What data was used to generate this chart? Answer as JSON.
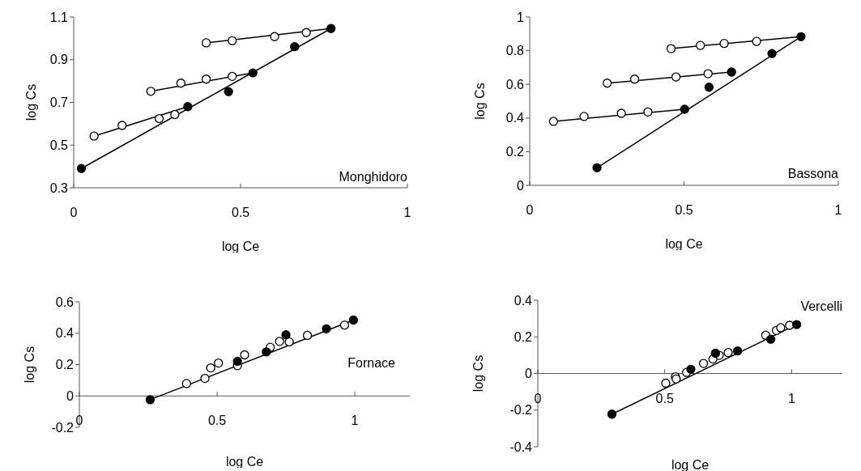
{
  "chart_data": [
    {
      "type": "scatter",
      "xlabel": "log Ce",
      "ylabel": "log Cs",
      "xlim": [
        0,
        1
      ],
      "xticks": [
        0,
        0.5,
        1
      ],
      "ylim": [
        0.3,
        1.1
      ],
      "yticks": [
        0.3,
        0.5,
        0.7,
        0.9,
        1.1
      ],
      "marker": "circle",
      "annotations": [
        "Monghidoro"
      ],
      "series": [
        {
          "type": "line",
          "color": "#000000",
          "marker": "none",
          "x": [
            0.023,
            0.771
          ],
          "values": [
            0.39,
            1.046
          ]
        },
        {
          "type": "line",
          "color": "#000000",
          "marker": "none",
          "x": [
            0.061,
            0.342
          ],
          "values": [
            0.542,
            0.68
          ]
        },
        {
          "type": "line",
          "color": "#000000",
          "marker": "none",
          "x": [
            0.231,
            0.537
          ],
          "values": [
            0.752,
            0.838
          ]
        },
        {
          "type": "line",
          "color": "#000000",
          "marker": "none",
          "x": [
            0.397,
            0.771
          ],
          "values": [
            0.979,
            1.046
          ]
        },
        {
          "color": "#ffffff",
          "x": [
            0.061,
            0.145,
            0.256,
            0.303,
            0.231,
            0.321,
            0.397,
            0.475,
            0.397,
            0.475,
            0.602,
            0.697
          ],
          "values": [
            0.542,
            0.592,
            0.624,
            0.643,
            0.752,
            0.79,
            0.809,
            0.822,
            0.979,
            0.989,
            1.008,
            1.027
          ]
        },
        {
          "color": "#000000",
          "x": [
            0.023,
            0.342,
            0.464,
            0.537,
            0.662,
            0.771
          ],
          "values": [
            0.39,
            0.68,
            0.75,
            0.838,
            0.961,
            1.046
          ]
        }
      ]
    },
    {
      "type": "scatter",
      "xlabel": "log Ce",
      "ylabel": "log Cs",
      "xlim": [
        0,
        1
      ],
      "xticks": [
        0,
        0.5,
        1
      ],
      "ylim": [
        0,
        1
      ],
      "yticks": [
        0,
        0.2,
        0.4,
        0.6,
        0.8,
        1
      ],
      "marker": "circle",
      "annotations": [
        "Bassona"
      ],
      "series": [
        {
          "type": "line",
          "color": "#000000",
          "marker": "none",
          "x": [
            0.218,
            0.879
          ],
          "values": [
            0.104,
            0.883
          ]
        },
        {
          "type": "line",
          "color": "#000000",
          "marker": "none",
          "x": [
            0.077,
            0.502
          ],
          "values": [
            0.38,
            0.452
          ]
        },
        {
          "type": "line",
          "color": "#000000",
          "marker": "none",
          "x": [
            0.251,
            0.654
          ],
          "values": [
            0.607,
            0.673
          ]
        },
        {
          "type": "line",
          "color": "#000000",
          "marker": "none",
          "x": [
            0.458,
            0.879
          ],
          "values": [
            0.812,
            0.883
          ]
        },
        {
          "color": "#ffffff",
          "x": [
            0.077,
            0.176,
            0.297,
            0.383,
            0.251,
            0.34,
            0.474,
            0.578,
            0.458,
            0.553,
            0.63,
            0.735
          ],
          "values": [
            0.38,
            0.409,
            0.428,
            0.436,
            0.607,
            0.631,
            0.644,
            0.663,
            0.812,
            0.831,
            0.843,
            0.855
          ]
        },
        {
          "color": "#000000",
          "x": [
            0.218,
            0.502,
            0.581,
            0.654,
            0.785,
            0.879
          ],
          "values": [
            0.104,
            0.452,
            0.583,
            0.673,
            0.783,
            0.883
          ]
        }
      ]
    },
    {
      "type": "scatter",
      "xlabel": "log Ce",
      "ylabel": "log Cs",
      "xlim": [
        0,
        1.2
      ],
      "xticks": [
        0,
        0.5,
        1
      ],
      "ylim": [
        -0.2,
        0.6
      ],
      "yticks": [
        -0.2,
        0,
        0.2,
        0.4,
        0.6
      ],
      "marker": "circle",
      "annotations": [
        "Fornace"
      ],
      "series": [
        {
          "type": "line",
          "color": "#000000",
          "marker": "none",
          "x": [
            0.257,
            0.995
          ],
          "values": [
            -0.024,
            0.484
          ]
        },
        {
          "color": "#ffffff",
          "x": [
            0.389,
            0.456,
            0.477,
            0.505,
            0.574,
            0.6,
            0.693,
            0.727,
            0.762,
            0.828,
            0.963
          ],
          "values": [
            0.079,
            0.112,
            0.179,
            0.21,
            0.193,
            0.262,
            0.31,
            0.348,
            0.345,
            0.386,
            0.452
          ]
        },
        {
          "color": "#000000",
          "x": [
            0.257,
            0.574,
            0.679,
            0.75,
            0.897,
            0.995
          ],
          "values": [
            -0.024,
            0.221,
            0.281,
            0.39,
            0.428,
            0.484
          ]
        }
      ]
    },
    {
      "type": "scatter",
      "xlabel": "log Ce",
      "ylabel": "log Cs",
      "xlim": [
        0,
        1.2
      ],
      "xticks": [
        0,
        0.5,
        1
      ],
      "ylim": [
        -0.4,
        0.4
      ],
      "yticks": [
        -0.4,
        -0.2,
        0,
        0.2,
        0.4
      ],
      "marker": "circle",
      "annotations": [
        "Vercelli"
      ],
      "series": [
        {
          "type": "line",
          "color": "#000000",
          "marker": "none",
          "x": [
            0.292,
            1.02
          ],
          "values": [
            -0.222,
            0.267
          ]
        },
        {
          "color": "#ffffff",
          "x": [
            0.504,
            0.542,
            0.545,
            0.586,
            0.653,
            0.69,
            0.715,
            0.75,
            0.898,
            0.94,
            0.957,
            0.992
          ],
          "values": [
            -0.053,
            -0.018,
            -0.03,
            0.006,
            0.055,
            0.079,
            0.099,
            0.114,
            0.209,
            0.235,
            0.25,
            0.263
          ]
        },
        {
          "color": "#000000",
          "x": [
            0.292,
            0.603,
            0.7,
            0.787,
            0.918,
            1.02
          ],
          "values": [
            -0.222,
            0.023,
            0.111,
            0.123,
            0.187,
            0.267
          ]
        }
      ]
    }
  ]
}
